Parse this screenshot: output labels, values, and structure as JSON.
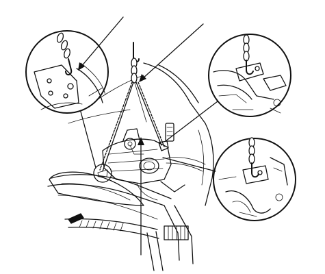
{
  "figure": {
    "kind": "engine-lifting-illustration",
    "background": "#ffffff",
    "ink": "#111111"
  },
  "detail_views": [
    {
      "id": "upper-left-detail",
      "depicts": "front-hook-attachment"
    },
    {
      "id": "upper-right-detail",
      "depicts": "rear-bracket-hook"
    },
    {
      "id": "lower-right-detail",
      "depicts": "side-bracket-hook"
    }
  ],
  "leader_lines": [
    {
      "id": "leader-top-left"
    },
    {
      "id": "leader-top-right"
    },
    {
      "id": "leader-bottom"
    }
  ]
}
